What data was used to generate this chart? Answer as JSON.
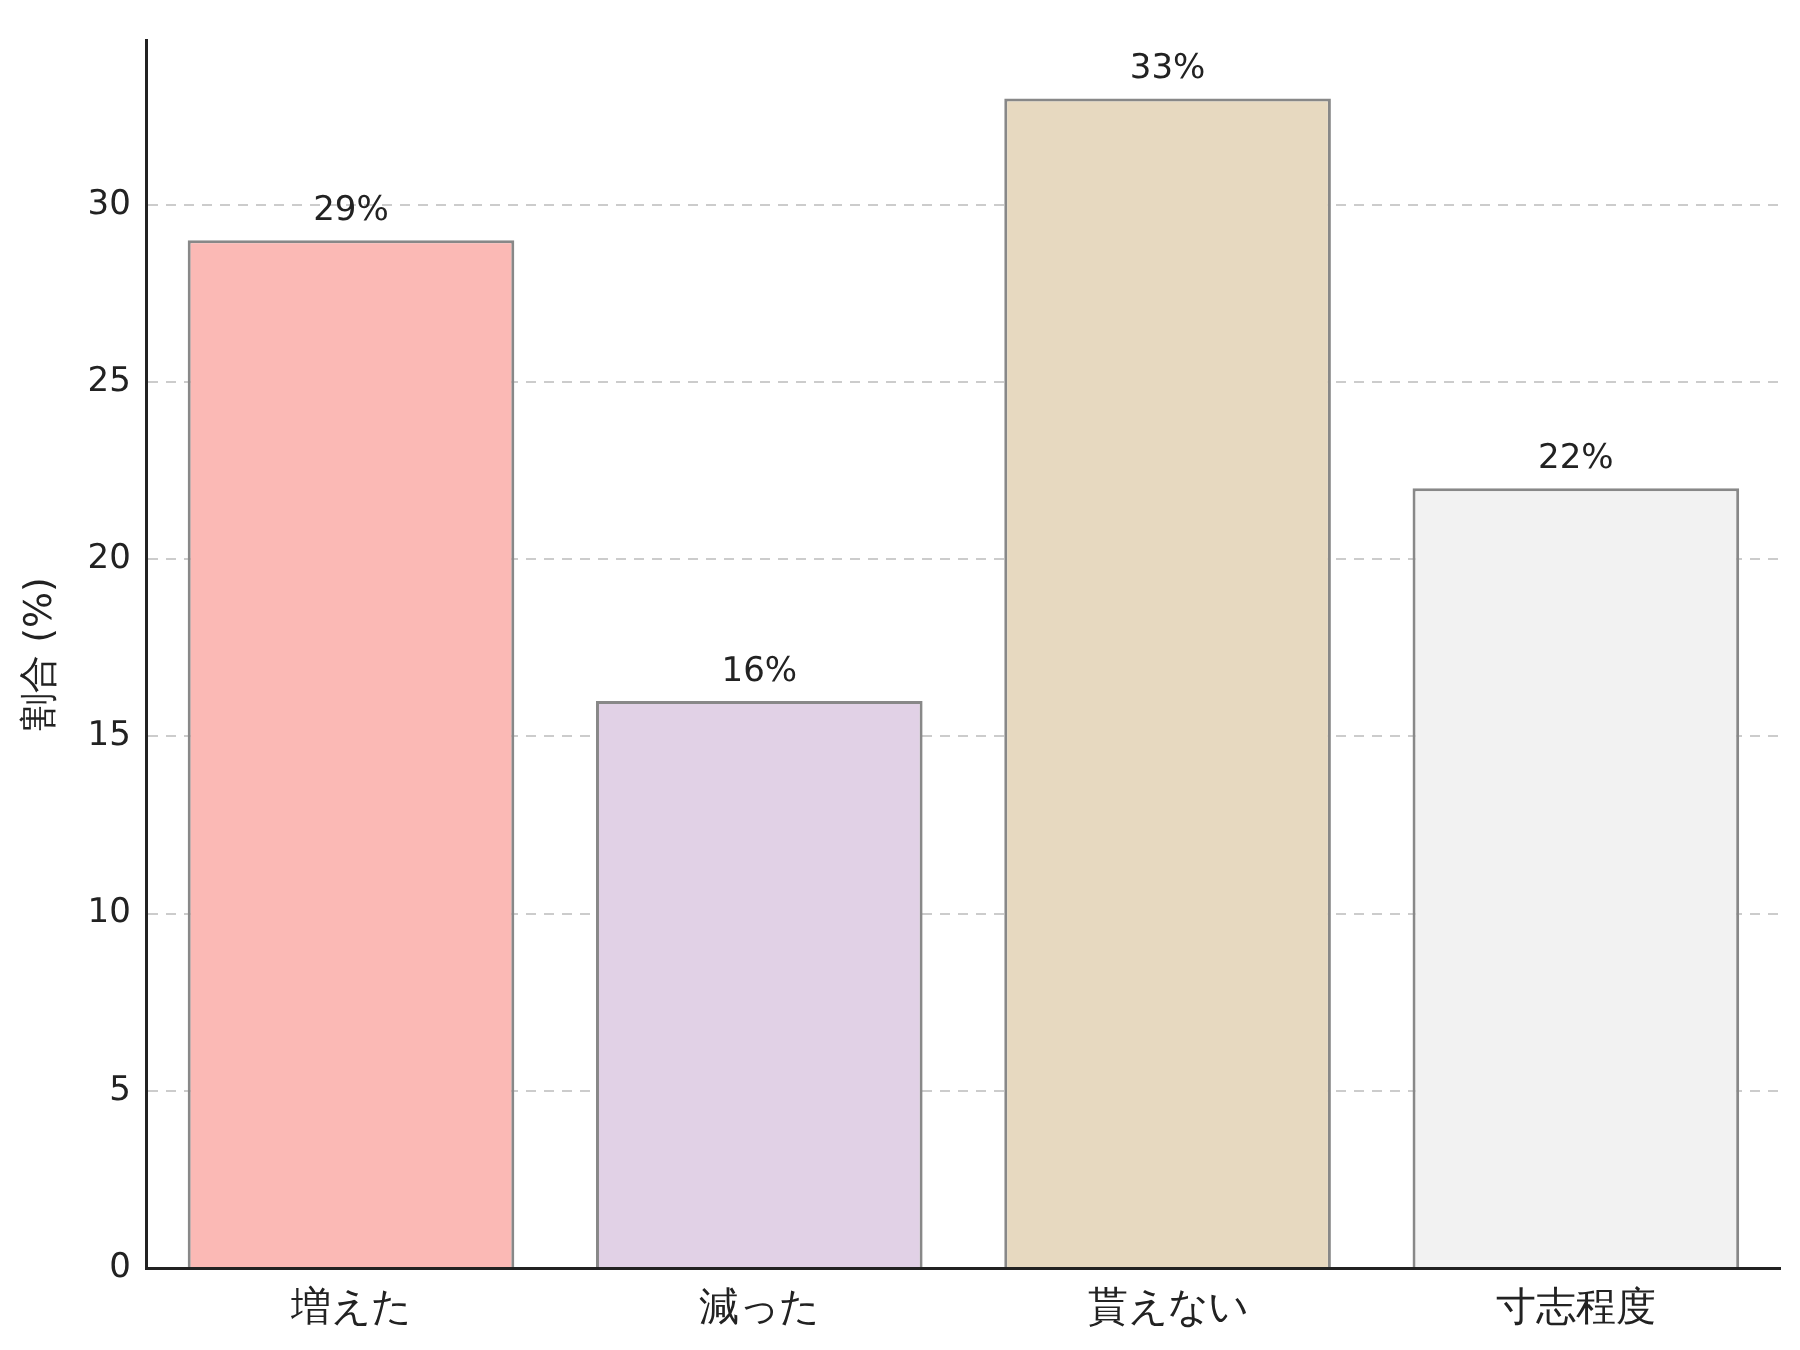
{
  "chart_data": {
    "type": "bar",
    "ylabel": "割合 (%)",
    "categories": [
      "増えた",
      "減った",
      "貰えない",
      "寸志程度"
    ],
    "values": [
      29,
      16,
      33,
      22
    ],
    "colors": [
      "#fbb9b5",
      "#e1d1e6",
      "#e7d9c0",
      "#f2f2f2"
    ],
    "value_labels": [
      "29%",
      "16%",
      "33%",
      "22%"
    ],
    "ylim": [
      0,
      34.65
    ],
    "yticks": [
      0,
      5,
      10,
      15,
      20,
      25,
      30
    ],
    "grid": "y",
    "legend": false
  }
}
